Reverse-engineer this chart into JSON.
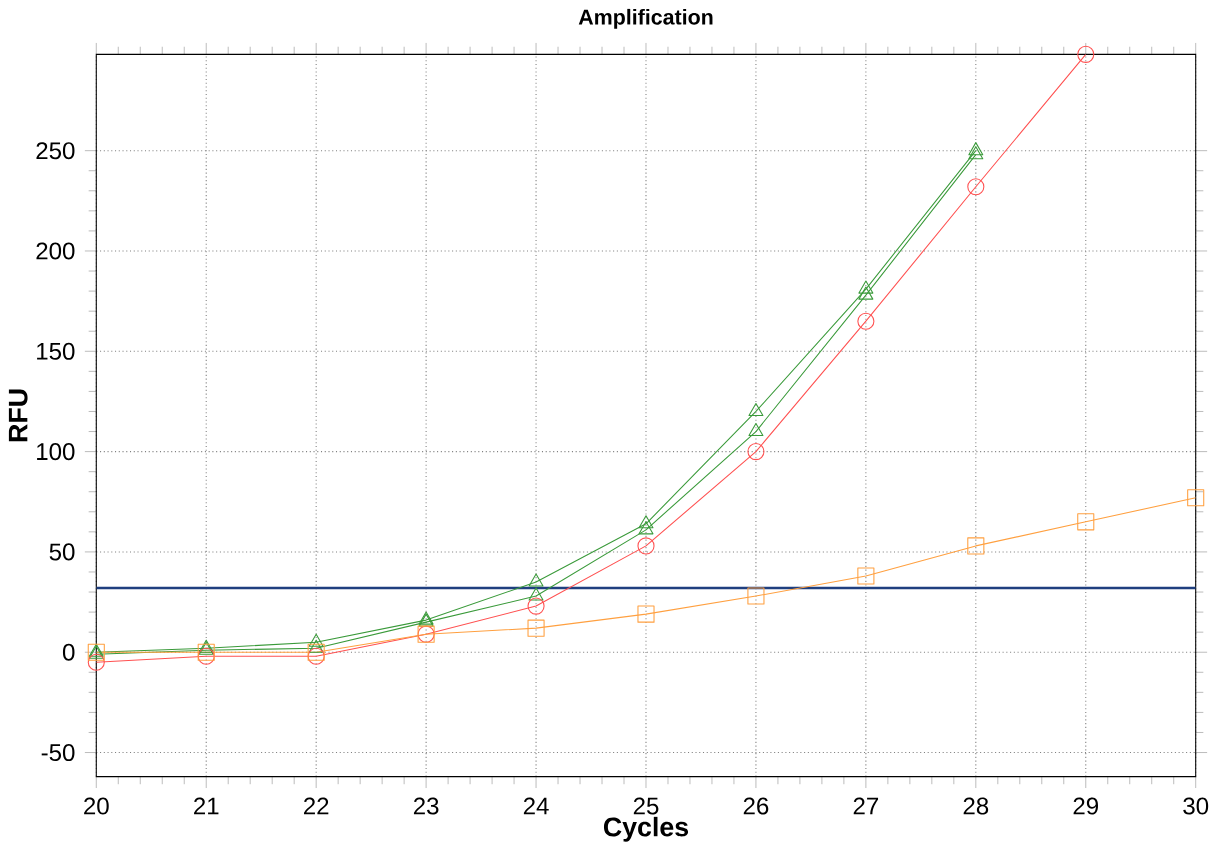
{
  "chart_data": {
    "type": "line",
    "title": "Amplification",
    "xlabel": "Cycles",
    "ylabel": "RFU",
    "x": [
      20,
      21,
      22,
      23,
      24,
      25,
      26,
      27,
      28,
      29,
      30
    ],
    "series": [
      {
        "color": "#3a9a3a",
        "marker": "triangle",
        "values": [
          0,
          2,
          5,
          16,
          35,
          64,
          120,
          181,
          250,
          null,
          null
        ]
      },
      {
        "color": "#3a9a3a",
        "marker": "triangle",
        "values": [
          -1,
          1,
          2,
          15,
          28,
          61,
          110,
          178,
          248,
          null,
          null
        ]
      },
      {
        "color": "#ff5050",
        "marker": "circle",
        "values": [
          -5,
          -2,
          -2,
          9,
          23,
          53,
          100,
          165,
          232,
          298,
          null
        ]
      },
      {
        "color": "#ffa040",
        "marker": "square",
        "values": [
          0,
          0,
          0,
          9,
          12,
          19,
          28,
          38,
          53,
          65,
          77
        ]
      }
    ],
    "xlim": [
      20,
      30
    ],
    "ylim": [
      -62,
      298
    ],
    "xticks": [
      20,
      21,
      22,
      23,
      24,
      25,
      26,
      27,
      28,
      29,
      30
    ],
    "yticks": [
      -50,
      0,
      50,
      100,
      150,
      200,
      250
    ],
    "ref_lines": [
      {
        "axis": "y",
        "value": 32,
        "color": "#1f3f7f"
      }
    ],
    "grid": true
  }
}
